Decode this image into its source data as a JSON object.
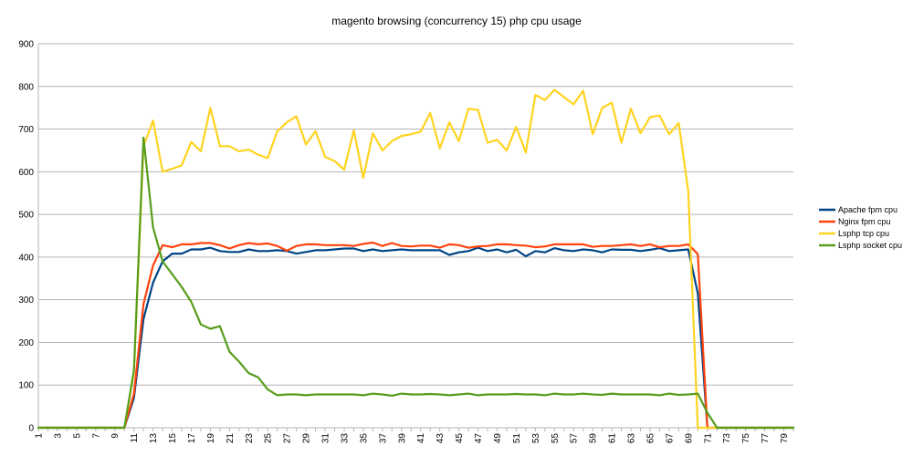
{
  "chart_data": {
    "type": "line",
    "title": "magento browsing (concurrency 15) php cpu usage",
    "xlabel": "",
    "ylabel": "",
    "ylim": [
      0,
      900
    ],
    "y_ticks": [
      0,
      100,
      200,
      300,
      400,
      500,
      600,
      700,
      800,
      900
    ],
    "x_ticks_shown": [
      1,
      3,
      5,
      7,
      9,
      11,
      13,
      15,
      17,
      19,
      21,
      23,
      25,
      27,
      29,
      31,
      33,
      35,
      37,
      39,
      41,
      43,
      45,
      47,
      49,
      51,
      53,
      55,
      57,
      59,
      61,
      63,
      65,
      67,
      69,
      71,
      73,
      75,
      77,
      79
    ],
    "x": [
      1,
      2,
      3,
      4,
      5,
      6,
      7,
      8,
      9,
      10,
      11,
      12,
      13,
      14,
      15,
      16,
      17,
      18,
      19,
      20,
      21,
      22,
      23,
      24,
      25,
      26,
      27,
      28,
      29,
      30,
      31,
      32,
      33,
      34,
      35,
      36,
      37,
      38,
      39,
      40,
      41,
      42,
      43,
      44,
      45,
      46,
      47,
      48,
      49,
      50,
      51,
      52,
      53,
      54,
      55,
      56,
      57,
      58,
      59,
      60,
      61,
      62,
      63,
      64,
      65,
      66,
      67,
      68,
      69,
      70,
      71,
      72,
      73,
      74,
      75,
      76,
      77,
      78,
      79,
      80
    ],
    "grid": true,
    "legend_position": "right",
    "series": [
      {
        "name": "Apache fpm cpu",
        "color": "#004586",
        "values": [
          0,
          0,
          0,
          0,
          0,
          0,
          0,
          0,
          0,
          0,
          70,
          255,
          340,
          390,
          408,
          408,
          418,
          418,
          422,
          414,
          412,
          412,
          418,
          414,
          414,
          416,
          414,
          408,
          412,
          416,
          416,
          418,
          420,
          420,
          414,
          418,
          414,
          416,
          418,
          416,
          416,
          416,
          416,
          405,
          411,
          414,
          422,
          414,
          418,
          411,
          417,
          402,
          414,
          411,
          421,
          416,
          414,
          418,
          416,
          411,
          418,
          417,
          417,
          414,
          417,
          421,
          414,
          416,
          418,
          315,
          0,
          0,
          0,
          0,
          0,
          0,
          0,
          0,
          0,
          0
        ]
      },
      {
        "name": "Nginx fpm cpu",
        "color": "#ff420e",
        "values": [
          0,
          0,
          0,
          0,
          0,
          0,
          0,
          0,
          0,
          0,
          80,
          290,
          380,
          428,
          423,
          430,
          430,
          433,
          433,
          428,
          420,
          428,
          433,
          430,
          432,
          426,
          415,
          426,
          430,
          430,
          428,
          428,
          428,
          426,
          431,
          434,
          426,
          433,
          426,
          425,
          427,
          427,
          422,
          430,
          428,
          422,
          425,
          426,
          430,
          430,
          428,
          427,
          423,
          425,
          430,
          430,
          430,
          430,
          424,
          426,
          426,
          428,
          430,
          426,
          430,
          423,
          426,
          426,
          430,
          407,
          0,
          0,
          0,
          0,
          0,
          0,
          0,
          0,
          0,
          0
        ]
      },
      {
        "name": "Lsphp tcp cpu",
        "color": "#ffd320",
        "values": [
          0,
          0,
          0,
          0,
          0,
          0,
          0,
          0,
          0,
          0,
          130,
          660,
          720,
          600,
          607,
          615,
          670,
          648,
          750,
          660,
          660,
          648,
          652,
          640,
          632,
          695,
          716,
          730,
          664,
          695,
          635,
          625,
          605,
          697,
          586,
          690,
          650,
          672,
          684,
          688,
          694,
          738,
          655,
          716,
          672,
          748,
          745,
          668,
          675,
          650,
          705,
          645,
          780,
          768,
          792,
          775,
          758,
          790,
          688,
          750,
          762,
          668,
          748,
          690,
          728,
          732,
          688,
          714,
          555,
          0,
          0,
          0,
          0,
          0,
          0,
          0,
          0,
          0,
          0,
          0
        ]
      },
      {
        "name": "Lsphp socket cpu",
        "color": "#579d1c",
        "values": [
          0,
          0,
          0,
          0,
          0,
          0,
          0,
          0,
          0,
          0,
          135,
          680,
          470,
          390,
          360,
          330,
          295,
          242,
          232,
          238,
          178,
          155,
          128,
          118,
          90,
          76,
          78,
          78,
          76,
          78,
          78,
          78,
          78,
          78,
          76,
          80,
          78,
          75,
          80,
          78,
          78,
          79,
          78,
          76,
          78,
          80,
          76,
          78,
          78,
          78,
          79,
          78,
          78,
          76,
          80,
          78,
          78,
          80,
          78,
          77,
          80,
          78,
          78,
          78,
          78,
          76,
          80,
          77,
          78,
          80,
          35,
          0,
          0,
          0,
          0,
          0,
          0,
          0,
          0,
          0
        ]
      }
    ]
  }
}
